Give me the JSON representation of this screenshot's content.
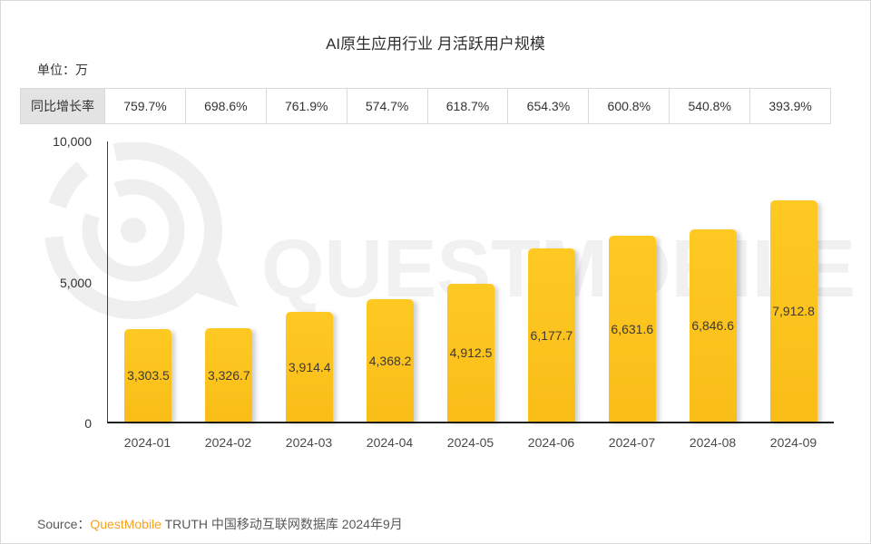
{
  "title": "AI原生应用行业 月活跃用户规模",
  "unit_label": "单位：万",
  "chart_data": {
    "type": "bar",
    "title": "AI原生应用行业 月活跃用户规模",
    "unit": "万",
    "categories": [
      "2024-01",
      "2024-02",
      "2024-03",
      "2024-04",
      "2024-05",
      "2024-06",
      "2024-07",
      "2024-08",
      "2024-09"
    ],
    "values": [
      3303.5,
      3326.7,
      3914.4,
      4368.2,
      4912.5,
      6177.7,
      6631.6,
      6846.6,
      7912.8
    ],
    "value_labels": [
      "3,303.5",
      "3,326.7",
      "3,914.4",
      "4,368.2",
      "4,912.5",
      "6,177.7",
      "6,631.6",
      "6,846.6",
      "7,912.8"
    ],
    "yoy_growth": {
      "label": "同比增长率",
      "values": [
        "759.7%",
        "698.6%",
        "761.9%",
        "574.7%",
        "618.7%",
        "654.3%",
        "600.8%",
        "540.8%",
        "393.9%"
      ]
    },
    "ylim": [
      0,
      10000
    ],
    "yticks": [
      "10,000",
      "5,000",
      "0"
    ],
    "grid": "off",
    "legend": "none",
    "bar_color": "#fbbd18"
  },
  "watermark": {
    "text": "QUESTMOBILE"
  },
  "source": {
    "prefix": "Source：",
    "brand": "QuestMobile",
    "suffix": " TRUTH 中国移动互联网数据库 2024年9月",
    "brand_color": "#f7a21b"
  }
}
